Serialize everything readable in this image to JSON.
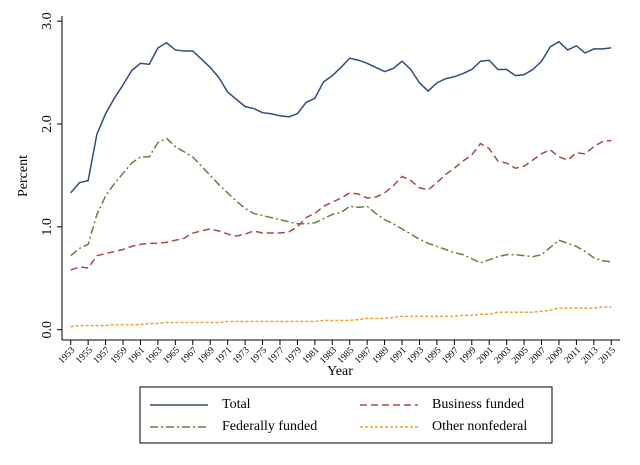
{
  "chart_data": {
    "type": "line",
    "x_label": "Year",
    "y_label": "Percent",
    "x": [
      1953,
      1954,
      1955,
      1956,
      1957,
      1958,
      1959,
      1960,
      1961,
      1962,
      1963,
      1964,
      1965,
      1966,
      1967,
      1968,
      1969,
      1970,
      1971,
      1972,
      1973,
      1974,
      1975,
      1976,
      1977,
      1978,
      1979,
      1980,
      1981,
      1982,
      1983,
      1984,
      1985,
      1986,
      1987,
      1988,
      1989,
      1990,
      1991,
      1992,
      1993,
      1994,
      1995,
      1996,
      1997,
      1998,
      1999,
      2000,
      2001,
      2002,
      2003,
      2004,
      2005,
      2006,
      2007,
      2008,
      2009,
      2010,
      2011,
      2012,
      2013,
      2014,
      2015
    ],
    "series": [
      {
        "name": "Total",
        "color": "#2e4f7c",
        "dash": "solid",
        "values": [
          1.33,
          1.43,
          1.45,
          1.9,
          2.1,
          2.25,
          2.38,
          2.52,
          2.59,
          2.58,
          2.74,
          2.79,
          2.72,
          2.71,
          2.71,
          2.63,
          2.55,
          2.45,
          2.31,
          2.24,
          2.17,
          2.15,
          2.11,
          2.1,
          2.08,
          2.07,
          2.1,
          2.21,
          2.25,
          2.41,
          2.47,
          2.55,
          2.64,
          2.62,
          2.59,
          2.55,
          2.51,
          2.54,
          2.61,
          2.53,
          2.4,
          2.32,
          2.4,
          2.44,
          2.46,
          2.49,
          2.53,
          2.61,
          2.62,
          2.53,
          2.53,
          2.47,
          2.48,
          2.53,
          2.61,
          2.75,
          2.8,
          2.72,
          2.76,
          2.69,
          2.73,
          2.73,
          2.74
        ]
      },
      {
        "name": "Business funded",
        "color": "#b04545",
        "dash": "dash",
        "values": [
          0.58,
          0.61,
          0.6,
          0.72,
          0.74,
          0.76,
          0.78,
          0.81,
          0.83,
          0.84,
          0.84,
          0.85,
          0.87,
          0.89,
          0.94,
          0.96,
          0.98,
          0.96,
          0.93,
          0.91,
          0.93,
          0.96,
          0.94,
          0.94,
          0.94,
          0.95,
          1.0,
          1.09,
          1.13,
          1.2,
          1.24,
          1.28,
          1.33,
          1.32,
          1.28,
          1.29,
          1.33,
          1.4,
          1.49,
          1.45,
          1.38,
          1.36,
          1.43,
          1.51,
          1.57,
          1.64,
          1.7,
          1.81,
          1.76,
          1.64,
          1.62,
          1.57,
          1.59,
          1.65,
          1.71,
          1.75,
          1.68,
          1.65,
          1.72,
          1.71,
          1.78,
          1.83,
          1.84
        ]
      },
      {
        "name": "Federally funded",
        "color": "#64803f",
        "dash": "dashdot",
        "values": [
          0.72,
          0.79,
          0.83,
          1.12,
          1.3,
          1.42,
          1.52,
          1.62,
          1.68,
          1.68,
          1.82,
          1.86,
          1.78,
          1.73,
          1.68,
          1.59,
          1.5,
          1.41,
          1.33,
          1.25,
          1.18,
          1.13,
          1.11,
          1.09,
          1.07,
          1.05,
          1.03,
          1.03,
          1.04,
          1.08,
          1.12,
          1.14,
          1.2,
          1.19,
          1.2,
          1.13,
          1.07,
          1.03,
          0.98,
          0.93,
          0.88,
          0.84,
          0.81,
          0.78,
          0.75,
          0.73,
          0.69,
          0.65,
          0.68,
          0.71,
          0.73,
          0.73,
          0.72,
          0.71,
          0.73,
          0.8,
          0.87,
          0.84,
          0.81,
          0.76,
          0.7,
          0.67,
          0.66
        ]
      },
      {
        "name": "Other nonfederal",
        "color": "#f0a030",
        "dash": "shortdash",
        "values": [
          0.03,
          0.04,
          0.04,
          0.04,
          0.04,
          0.05,
          0.05,
          0.05,
          0.05,
          0.06,
          0.06,
          0.07,
          0.07,
          0.07,
          0.07,
          0.07,
          0.07,
          0.07,
          0.08,
          0.08,
          0.08,
          0.08,
          0.08,
          0.08,
          0.08,
          0.08,
          0.08,
          0.08,
          0.08,
          0.09,
          0.09,
          0.09,
          0.09,
          0.1,
          0.11,
          0.11,
          0.11,
          0.12,
          0.13,
          0.13,
          0.13,
          0.13,
          0.13,
          0.13,
          0.13,
          0.14,
          0.14,
          0.15,
          0.15,
          0.17,
          0.17,
          0.17,
          0.17,
          0.17,
          0.18,
          0.19,
          0.21,
          0.21,
          0.21,
          0.21,
          0.21,
          0.22,
          0.22
        ]
      }
    ],
    "xlim": [
      1952,
      2016
    ],
    "ylim": [
      -0.1,
      3.05
    ],
    "xticks": [
      1953,
      1955,
      1957,
      1959,
      1961,
      1963,
      1965,
      1967,
      1969,
      1971,
      1973,
      1975,
      1977,
      1979,
      1981,
      1983,
      1985,
      1987,
      1989,
      1991,
      1993,
      1995,
      1997,
      1999,
      2001,
      2003,
      2005,
      2007,
      2009,
      2011,
      2013,
      2015
    ],
    "yticks": [
      {
        "value": 0,
        "label": "0.0"
      },
      {
        "value": 1,
        "label": "1.0"
      },
      {
        "value": 2,
        "label": "2.0"
      },
      {
        "value": 3,
        "label": "3.0"
      }
    ],
    "grid": false,
    "legend": "bottom"
  }
}
